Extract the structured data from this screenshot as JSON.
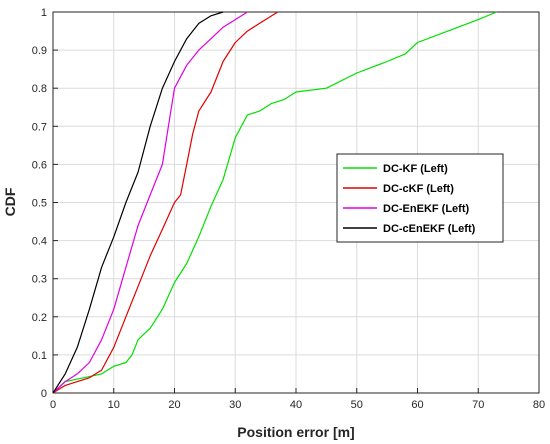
{
  "chart_data": {
    "type": "line",
    "xlabel": "Position error [m]",
    "ylabel": "CDF",
    "xlim": [
      0,
      80
    ],
    "ylim": [
      0,
      1
    ],
    "xticks": [
      "0",
      "10",
      "20",
      "30",
      "40",
      "50",
      "60",
      "70",
      "80"
    ],
    "yticks": [
      "0",
      "0.1",
      "0.2",
      "0.3",
      "0.4",
      "0.5",
      "0.6",
      "0.7",
      "0.8",
      "0.9",
      "1"
    ],
    "grid": true,
    "legend_position": "center-right",
    "series": [
      {
        "name": "DC-KF (Left)",
        "color": "#00e000",
        "x": [
          0,
          2,
          5,
          8,
          10,
          12,
          13,
          14,
          16,
          18,
          20,
          22,
          24,
          26,
          28,
          30,
          32,
          34,
          36,
          38,
          40,
          45,
          50,
          55,
          58,
          60,
          65,
          70,
          73
        ],
        "y": [
          0,
          0.03,
          0.04,
          0.05,
          0.07,
          0.08,
          0.1,
          0.14,
          0.17,
          0.22,
          0.29,
          0.34,
          0.41,
          0.49,
          0.56,
          0.67,
          0.73,
          0.74,
          0.76,
          0.77,
          0.79,
          0.8,
          0.84,
          0.87,
          0.89,
          0.92,
          0.95,
          0.98,
          1.0
        ]
      },
      {
        "name": "DC-cKF (Left)",
        "color": "#e00000",
        "x": [
          0,
          2,
          4,
          6,
          8,
          10,
          12,
          14,
          16,
          18,
          20,
          21,
          22,
          23,
          24,
          26,
          28,
          30,
          32,
          34,
          36,
          37
        ],
        "y": [
          0,
          0.02,
          0.03,
          0.04,
          0.06,
          0.12,
          0.2,
          0.28,
          0.36,
          0.43,
          0.5,
          0.52,
          0.6,
          0.68,
          0.74,
          0.79,
          0.87,
          0.92,
          0.95,
          0.97,
          0.99,
          1.0
        ]
      },
      {
        "name": "DC-EnEKF (Left)",
        "color": "#e000e0",
        "x": [
          0,
          2,
          4,
          6,
          8,
          10,
          12,
          14,
          16,
          18,
          19,
          20,
          22,
          24,
          26,
          28,
          30,
          32
        ],
        "y": [
          0,
          0.03,
          0.05,
          0.08,
          0.14,
          0.22,
          0.33,
          0.44,
          0.52,
          0.6,
          0.7,
          0.8,
          0.86,
          0.9,
          0.93,
          0.96,
          0.98,
          1.0
        ]
      },
      {
        "name": "DC-cEnEKF (Left)",
        "color": "#000000",
        "x": [
          0,
          2,
          4,
          6,
          8,
          10,
          12,
          14,
          16,
          18,
          20,
          22,
          24,
          26,
          28
        ],
        "y": [
          0,
          0.05,
          0.12,
          0.22,
          0.33,
          0.41,
          0.5,
          0.58,
          0.7,
          0.8,
          0.87,
          0.93,
          0.97,
          0.99,
          1.0
        ]
      }
    ]
  }
}
